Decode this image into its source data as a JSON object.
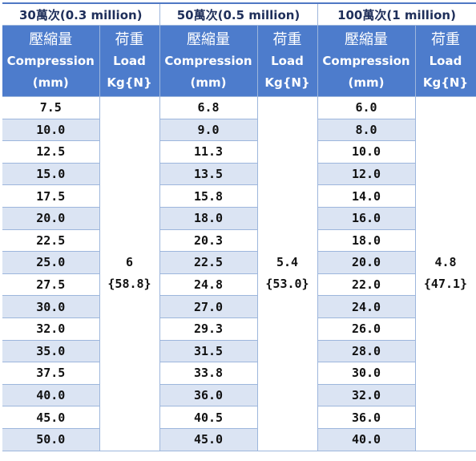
{
  "groups": [
    {
      "title": "30萬次(0.3 million)",
      "compression_header": {
        "zh": "壓縮量",
        "en": "Compression",
        "unit": "(mm)"
      },
      "load_header": {
        "zh": "荷重",
        "en": "Load",
        "unit": "Kg{N}"
      },
      "compression": [
        "7.5",
        "10.0",
        "12.5",
        "15.0",
        "17.5",
        "20.0",
        "22.5",
        "25.0",
        "27.5",
        "30.0",
        "32.0",
        "35.0",
        "37.5",
        "40.0",
        "45.0",
        "50.0"
      ],
      "load": {
        "kg": "6",
        "n": "{58.8}"
      }
    },
    {
      "title": "50萬次(0.5 million)",
      "compression_header": {
        "zh": "壓縮量",
        "en": "Compression",
        "unit": "(mm)"
      },
      "load_header": {
        "zh": "荷重",
        "en": "Load",
        "unit": "Kg{N}"
      },
      "compression": [
        "6.8",
        "9.0",
        "11.3",
        "13.5",
        "15.8",
        "18.0",
        "20.3",
        "22.5",
        "24.8",
        "27.0",
        "29.3",
        "31.5",
        "33.8",
        "36.0",
        "40.5",
        "45.0"
      ],
      "load": {
        "kg": "5.4",
        "n": "{53.0}"
      }
    },
    {
      "title": "100萬次(1 million)",
      "compression_header": {
        "zh": "壓縮量",
        "en": "Compression",
        "unit": "(mm)"
      },
      "load_header": {
        "zh": "荷重",
        "en": "Load",
        "unit": "Kg{N}"
      },
      "compression": [
        "6.0",
        "8.0",
        "10.0",
        "12.0",
        "14.0",
        "16.0",
        "18.0",
        "20.0",
        "22.0",
        "24.0",
        "26.0",
        "28.0",
        "30.0",
        "32.0",
        "36.0",
        "40.0"
      ],
      "load": {
        "kg": "4.8",
        "n": "{47.1}"
      }
    }
  ],
  "colors": {
    "header_bg": "#4d7ccc",
    "header_text": "#ffffff",
    "stripe": "#dbe4f3",
    "border": "#9db6dc",
    "title_text": "#1f2f5a"
  }
}
